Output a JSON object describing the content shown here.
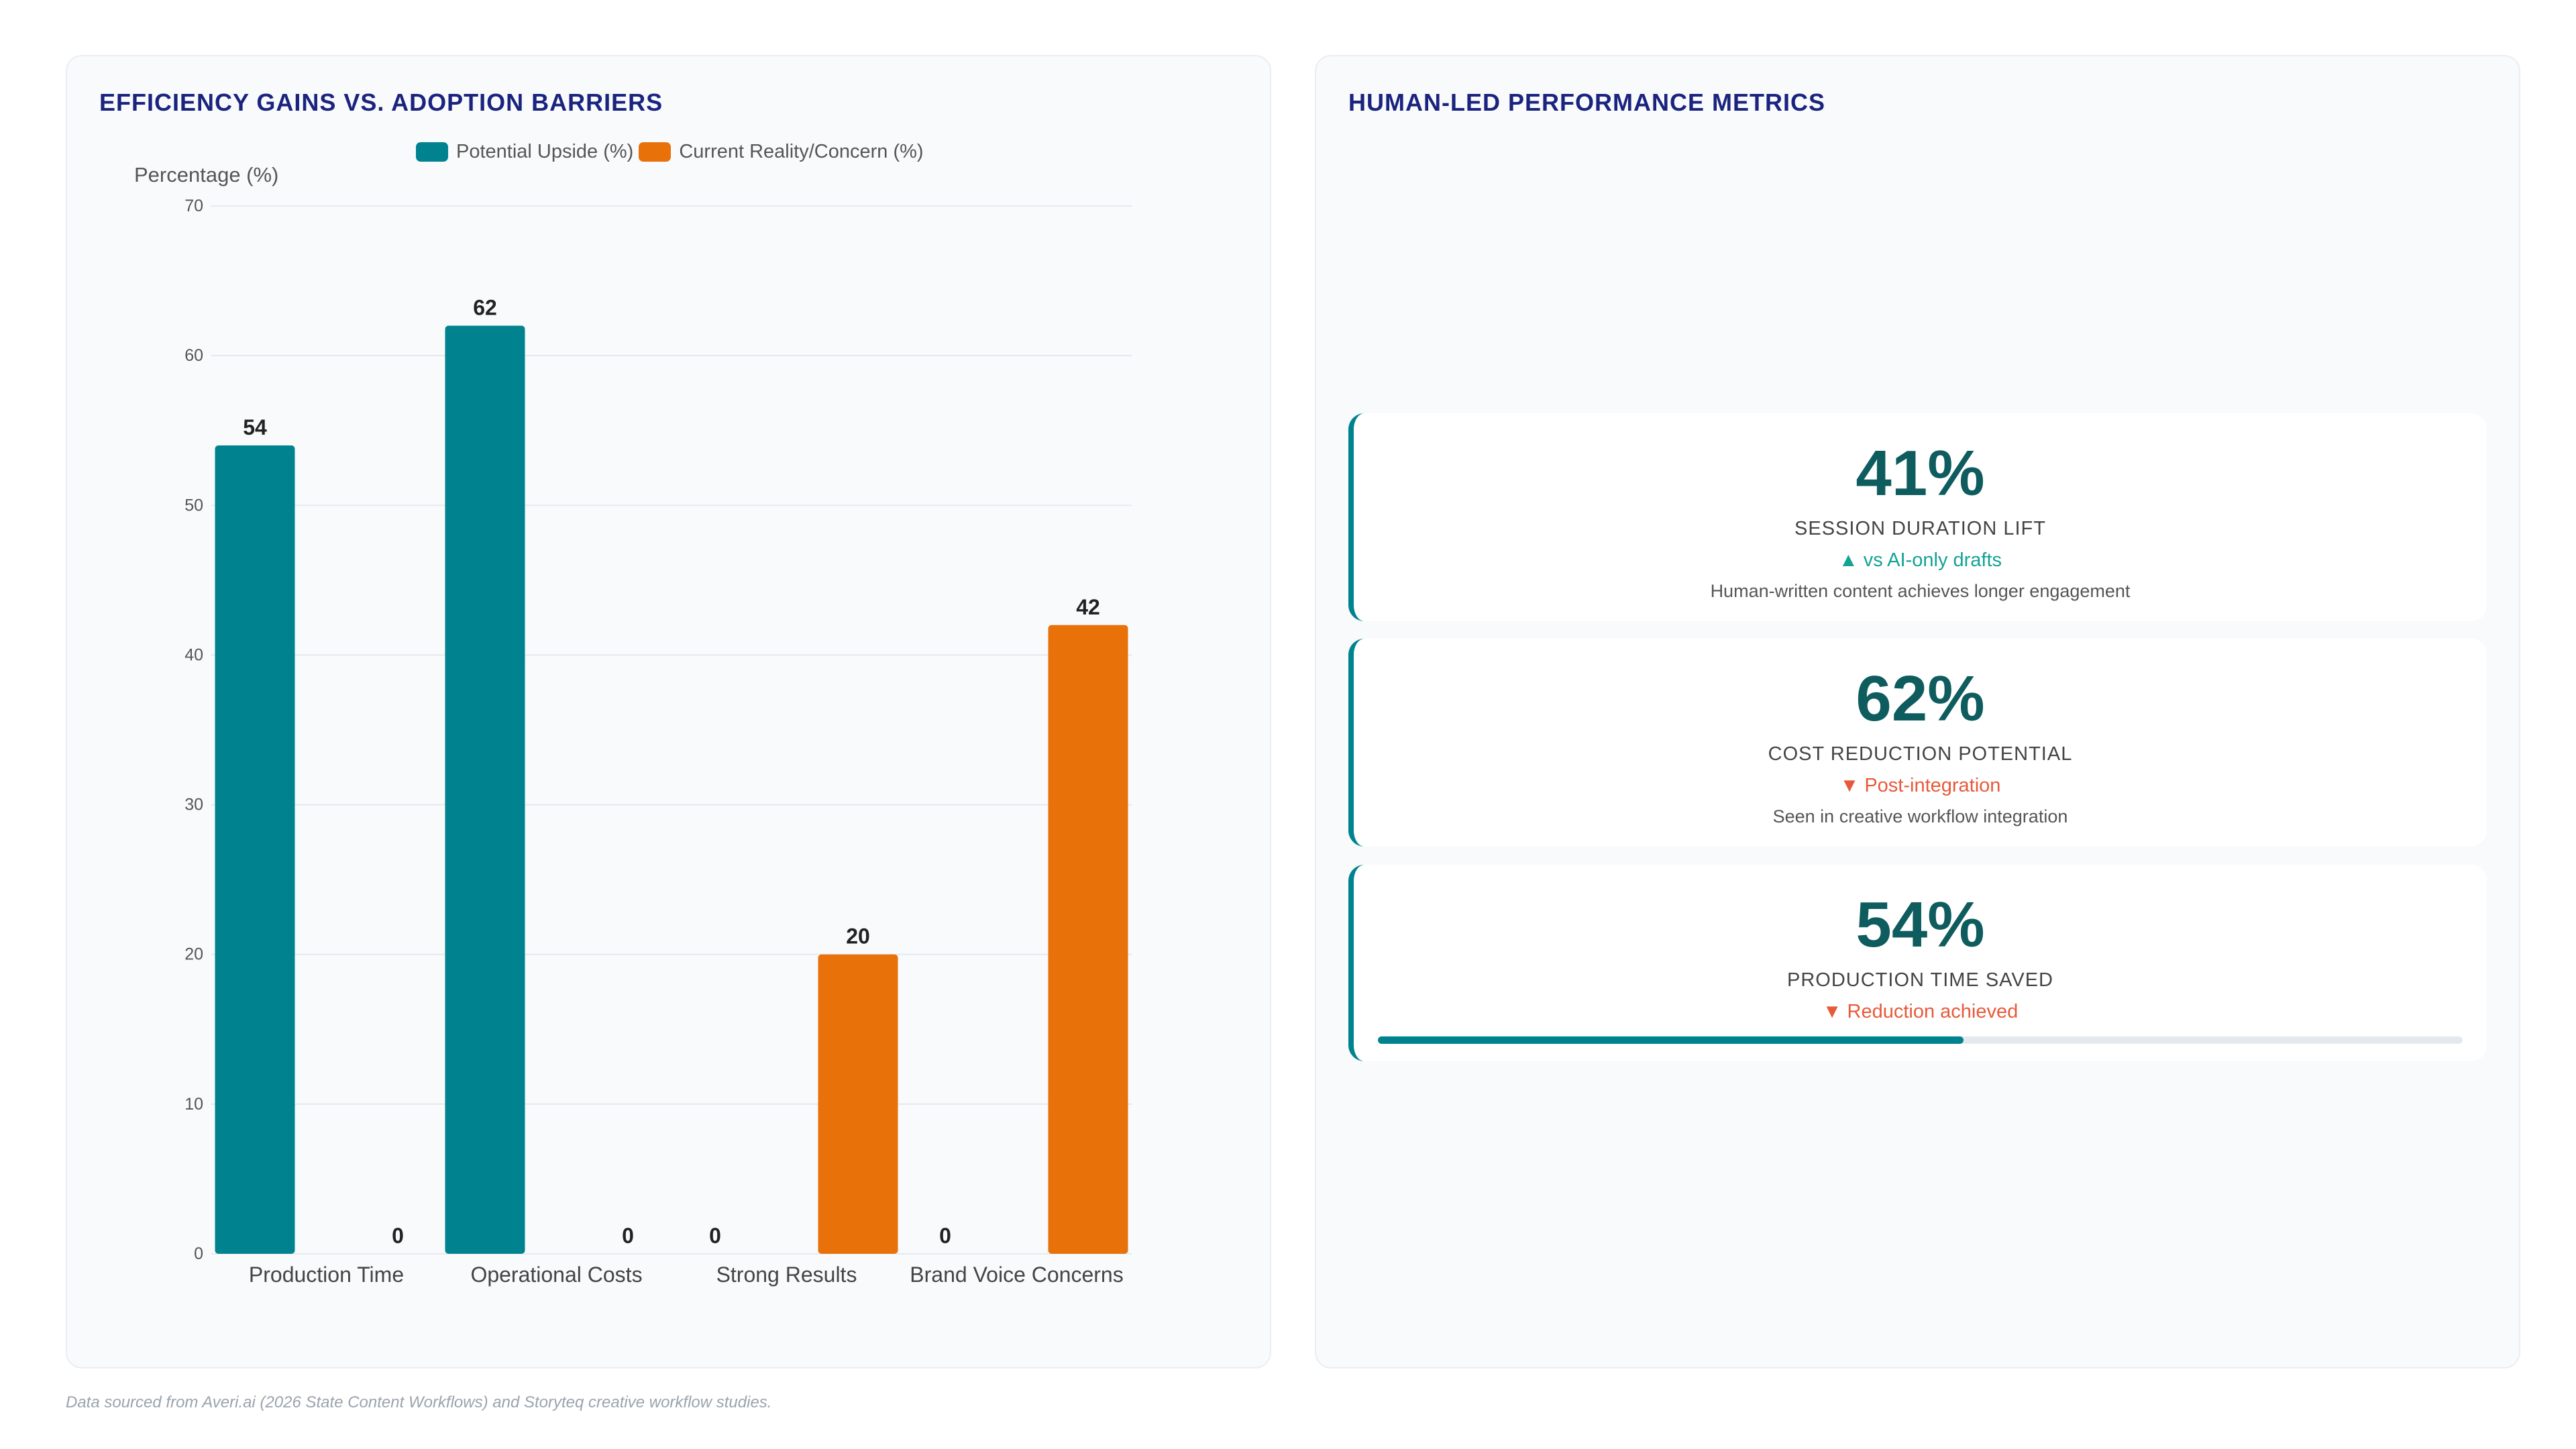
{
  "left_panel": {
    "title": "EFFICIENCY GAINS VS. ADOPTION BARRIERS"
  },
  "right_panel": {
    "title": "HUMAN-LED PERFORMANCE METRICS",
    "metrics": [
      {
        "value": "41%",
        "label": "SESSION DURATION LIFT",
        "change": "▲ vs AI-only drafts",
        "direction": "up",
        "description": "Human-written content achieves longer engagement"
      },
      {
        "value": "62%",
        "label": "COST REDUCTION POTENTIAL",
        "change": "▼ Post-integration",
        "direction": "down",
        "description": "Seen in creative workflow integration"
      },
      {
        "value": "54%",
        "label": "PRODUCTION TIME SAVED",
        "change": "▼ Reduction achieved",
        "direction": "down",
        "progress_percent": 54
      }
    ]
  },
  "chart_data": {
    "type": "bar",
    "title": "EFFICIENCY GAINS VS. ADOPTION BARRIERS",
    "categories": [
      "Production Time",
      "Operational Costs",
      "Strong Results",
      "Brand Voice Concerns"
    ],
    "series": [
      {
        "name": "Potential Upside (%)",
        "values": [
          54,
          62,
          0,
          0
        ],
        "color": "#00838f"
      },
      {
        "name": "Current Reality/Concern (%)",
        "values": [
          0,
          0,
          20,
          42
        ],
        "color": "#e8710a"
      }
    ],
    "ylabel": "Percentage (%)",
    "xlabel": "",
    "ylim": [
      0,
      70
    ],
    "yticks": [
      0,
      10,
      20,
      30,
      40,
      50,
      60,
      70
    ],
    "legend": "top",
    "grid": true,
    "data_labels": true
  },
  "footer": {
    "source": "Data sourced from Averi.ai (2026 State Content Workflows) and Storyteq creative workflow studies."
  }
}
